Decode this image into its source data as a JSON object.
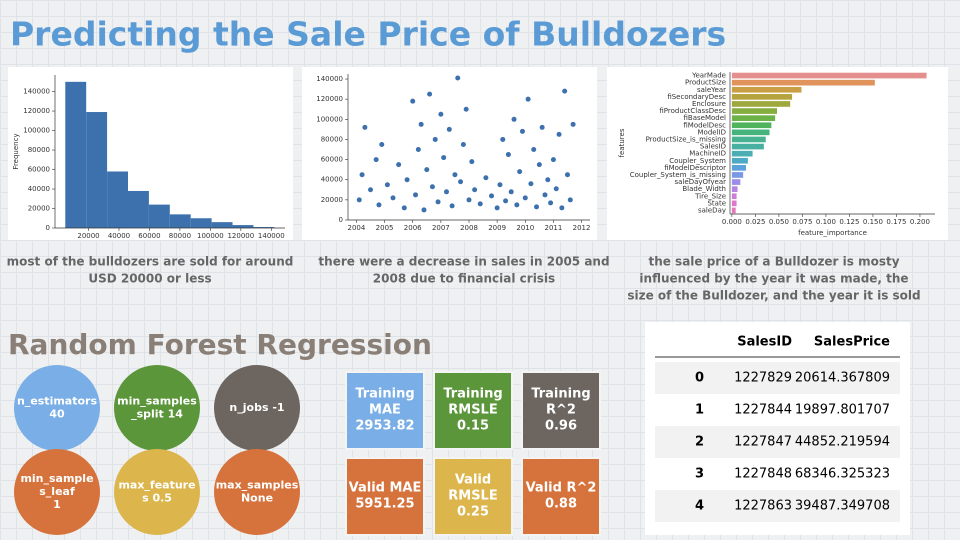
{
  "title": "Predicting the Sale Price of Bulldozers",
  "chart_data": [
    {
      "type": "histogram",
      "ylabel": "Frequency",
      "bins": [
        4750,
        18475,
        32200,
        45925,
        59650,
        73375,
        87100,
        100825,
        114550,
        128275,
        142000
      ],
      "values": [
        150000,
        119000,
        58000,
        38000,
        24000,
        14000,
        10000,
        6000,
        3000,
        1000
      ],
      "color": "#3d71ad",
      "xlim": [
        -2000,
        149000
      ],
      "xticks": [
        20000,
        40000,
        60000,
        80000,
        100000,
        120000,
        140000
      ],
      "ylim": [
        0,
        157000
      ],
      "yticks": [
        0,
        20000,
        40000,
        60000,
        80000,
        100000,
        120000,
        140000
      ]
    },
    {
      "type": "scatter",
      "color": "#3d71ad",
      "x": [
        2004.1,
        2004.2,
        2004.3,
        2004.5,
        2004.7,
        2004.8,
        2004.9,
        2005.1,
        2005.3,
        2005.5,
        2005.7,
        2005.8,
        2006.0,
        2006.1,
        2006.2,
        2006.3,
        2006.4,
        2006.5,
        2006.6,
        2006.7,
        2006.8,
        2006.9,
        2007.0,
        2007.1,
        2007.2,
        2007.3,
        2007.4,
        2007.5,
        2007.6,
        2007.7,
        2007.8,
        2007.9,
        2008.0,
        2008.1,
        2008.2,
        2008.4,
        2008.6,
        2008.8,
        2009.0,
        2009.1,
        2009.2,
        2009.3,
        2009.4,
        2009.5,
        2009.6,
        2009.7,
        2009.8,
        2009.9,
        2010.0,
        2010.1,
        2010.2,
        2010.3,
        2010.4,
        2010.5,
        2010.6,
        2010.7,
        2010.8,
        2010.9,
        2011.0,
        2011.1,
        2011.2,
        2011.3,
        2011.4,
        2011.5,
        2011.6,
        2011.7
      ],
      "y": [
        20000,
        45000,
        92000,
        30000,
        60000,
        15000,
        75000,
        35000,
        22000,
        55000,
        12000,
        40000,
        118000,
        25000,
        70000,
        95000,
        10000,
        50000,
        125000,
        33000,
        80000,
        18000,
        105000,
        62000,
        28000,
        90000,
        14000,
        45000,
        141000,
        38000,
        75000,
        110000,
        20000,
        58000,
        30000,
        16000,
        42000,
        24000,
        12000,
        35000,
        80000,
        19000,
        65000,
        28000,
        100000,
        15000,
        48000,
        88000,
        22000,
        120000,
        36000,
        70000,
        13000,
        55000,
        92000,
        25000,
        40000,
        17000,
        60000,
        31000,
        85000,
        12000,
        128000,
        45000,
        20000,
        95000
      ],
      "xlim": [
        2003.7,
        2012.3
      ],
      "xticks": [
        2004,
        2005,
        2006,
        2007,
        2008,
        2009,
        2010,
        2011,
        2012
      ],
      "ylim": [
        0,
        145000
      ],
      "yticks": [
        0,
        20000,
        40000,
        60000,
        80000,
        100000,
        120000,
        140000
      ]
    },
    {
      "type": "hbar",
      "xlabel": "feature_importance",
      "ylabel": "features",
      "categories": [
        "YearMade",
        "ProductSize",
        "saleYear",
        "fiSecondaryDesc",
        "Enclosure",
        "fiProductClassDesc",
        "fiBaseModel",
        "fiModelDesc",
        "ModelID",
        "ProductSize_is_missing",
        "SalesID",
        "MachineID",
        "Coupler_System",
        "fiModelDescriptor",
        "Coupler_System_is_missing",
        "saleDayOfyear",
        "Blade_Width",
        "Tire_Size",
        "State",
        "saleDay"
      ],
      "values": [
        0.207,
        0.152,
        0.074,
        0.064,
        0.062,
        0.048,
        0.046,
        0.042,
        0.04,
        0.036,
        0.034,
        0.022,
        0.017,
        0.015,
        0.012,
        0.009,
        0.006,
        0.005,
        0.005,
        0.004
      ],
      "colors": [
        "#e58e8e",
        "#e0935a",
        "#c99e45",
        "#b5a33f",
        "#9fa83c",
        "#86ae3e",
        "#6cb247",
        "#50b45f",
        "#45b37c",
        "#46b28f",
        "#48b0a1",
        "#4aaeb2",
        "#4eaac4",
        "#5aa2d9",
        "#7a98e6",
        "#9a8ce8",
        "#b583e4",
        "#cd7bdc",
        "#dd78cb",
        "#e579b7"
      ],
      "xlim": [
        -0.002,
        0.216
      ],
      "xticks": [
        {
          "value": 0,
          "label": "0.000"
        },
        {
          "value": 0.025,
          "label": "0.025"
        },
        {
          "value": 0.05,
          "label": "0.050"
        },
        {
          "value": 0.075,
          "label": "0.075"
        },
        {
          "value": 0.1,
          "label": "0.100"
        },
        {
          "value": 0.125,
          "label": "0.125"
        },
        {
          "value": 0.15,
          "label": "0.150"
        },
        {
          "value": 0.175,
          "label": "0.175"
        },
        {
          "value": 0.2,
          "label": "0.200"
        }
      ]
    }
  ],
  "captions": [
    [
      "most of the bulldozers are sold for around",
      "USD 20000 or less"
    ],
    [
      "there were a decrease in sales in 2005 and",
      "2008 due to financial crisis"
    ],
    [
      "the sale price of a Bulldozer is mosty",
      "influenced by the year it was made, the",
      "size of the Bulldozer, and the year it is sold"
    ]
  ],
  "section_title": "Random Forest Regression",
  "circles": [
    {
      "lines": [
        "n_estimators",
        "40"
      ],
      "color": "#7aaee6"
    },
    {
      "lines": [
        "min_samples",
        "_split 14"
      ],
      "color": "#5b963b"
    },
    {
      "lines": [
        "n_jobs -1"
      ],
      "color": "#6d6660"
    },
    {
      "lines": [
        "min_sample",
        "s_leaf",
        "1"
      ],
      "color": "#d6733c"
    },
    {
      "lines": [
        "max_feature",
        "s 0.5"
      ],
      "color": "#dcb54c"
    },
    {
      "lines": [
        "max_samples",
        "None"
      ],
      "color": "#d6733c"
    }
  ],
  "boxes": [
    {
      "lines": [
        "Training",
        "MAE",
        "2953.82"
      ],
      "color": "#7aaee6"
    },
    {
      "lines": [
        "Training",
        "RMSLE",
        "0.15"
      ],
      "color": "#5b963b"
    },
    {
      "lines": [
        "Training",
        "R^2",
        "0.96"
      ],
      "color": "#6d6660"
    },
    {
      "lines": [
        "Valid MAE",
        "5951.25"
      ],
      "color": "#d6733c"
    },
    {
      "lines": [
        "Valid",
        "RMSLE",
        "0.25"
      ],
      "color": "#dcb54c"
    },
    {
      "lines": [
        "Valid R^2",
        "0.88"
      ],
      "color": "#d6733c"
    }
  ],
  "table": {
    "header": [
      "SalesID",
      "SalesPrice"
    ],
    "rows": [
      [
        "0",
        "1227829",
        "20614.367809"
      ],
      [
        "1",
        "1227844",
        "19897.801707"
      ],
      [
        "2",
        "1227847",
        "44852.219594"
      ],
      [
        "3",
        "1227848",
        "68346.325323"
      ],
      [
        "4",
        "1227863",
        "39487.349708"
      ]
    ]
  }
}
